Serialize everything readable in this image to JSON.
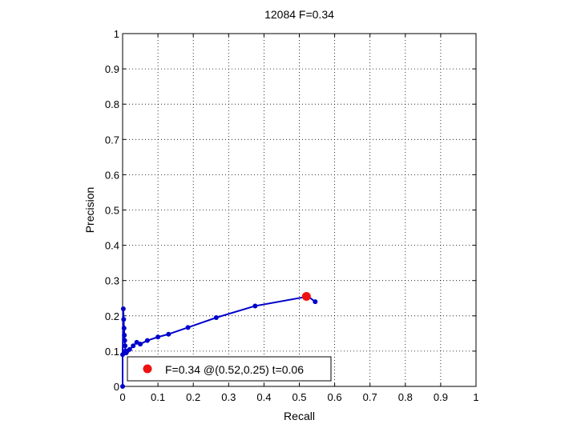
{
  "chart_data": {
    "type": "line",
    "title": "12084 F=0.34",
    "xlabel": "Recall",
    "ylabel": "Precision",
    "xlim": [
      0,
      1
    ],
    "ylim": [
      0,
      1
    ],
    "xticks": [
      "0",
      "0.1",
      "0.2",
      "0.3",
      "0.4",
      "0.5",
      "0.6",
      "0.7",
      "0.8",
      "0.9",
      "1"
    ],
    "yticks": [
      "0",
      "0.1",
      "0.2",
      "0.3",
      "0.4",
      "0.5",
      "0.6",
      "0.7",
      "0.8",
      "0.9",
      "1"
    ],
    "grid": true,
    "legend_position": "bottom-left",
    "colors": {
      "curve": "#0000cc",
      "best_point": "#ee1111"
    },
    "series": [
      {
        "x": [
          0.0,
          0.0,
          0.002,
          0.003,
          0.004,
          0.005,
          0.006,
          0.007,
          0.008,
          0.01,
          0.013,
          0.02,
          0.03,
          0.04,
          0.05,
          0.07,
          0.1,
          0.13,
          0.185,
          0.265,
          0.375,
          0.525,
          0.545
        ],
        "y": [
          0.0,
          0.09,
          0.22,
          0.19,
          0.165,
          0.145,
          0.13,
          0.115,
          0.1,
          0.095,
          0.1,
          0.105,
          0.115,
          0.125,
          0.12,
          0.13,
          0.14,
          0.148,
          0.167,
          0.195,
          0.228,
          0.255,
          0.24
        ]
      }
    ],
    "best_point": {
      "x": 0.52,
      "y": 0.255,
      "label": "F=0.34 @(0.52,0.25) t=0.06"
    }
  }
}
